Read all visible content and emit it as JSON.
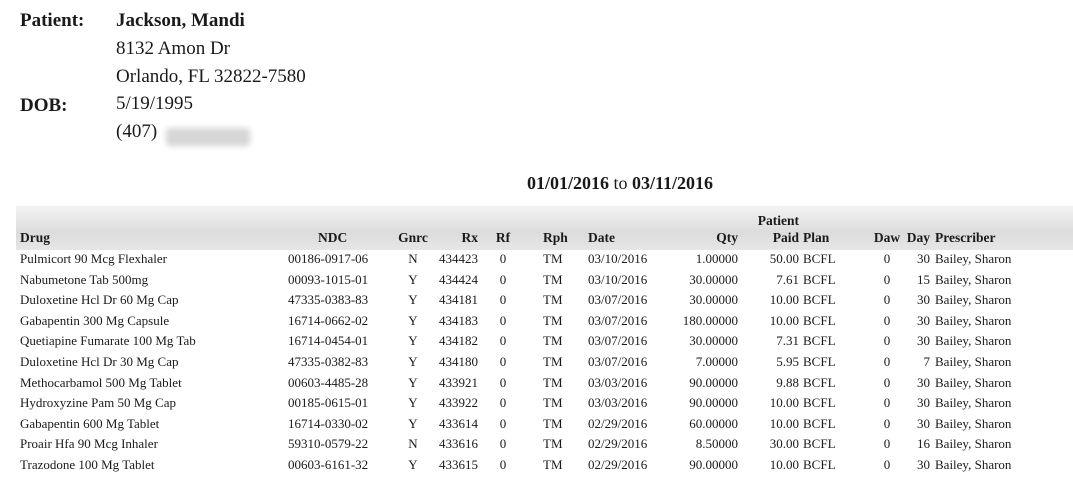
{
  "patient": {
    "label": "Patient:",
    "name": "Jackson, Mandi",
    "address1": "8132 Amon Dr",
    "address2": "Orlando, FL 32822-7580",
    "dob_label": "DOB:",
    "dob": "5/19/1995",
    "phone_prefix": "(407)"
  },
  "date_range": {
    "from": "01/01/2016",
    "sep": "to",
    "to": "03/11/2016"
  },
  "table": {
    "headers": {
      "drug": "Drug",
      "ndc": "NDC",
      "gnrc": "Gnrc",
      "rx": "Rx",
      "rf": "Rf",
      "rph": "Rph",
      "date": "Date",
      "qty": "Qty",
      "paid_top": "Patient",
      "paid": "Paid",
      "plan": "Plan",
      "daw": "Daw",
      "day": "Day",
      "prescriber": "Prescriber"
    },
    "rows": [
      {
        "drug": "Pulmicort 90 Mcg Flexhaler",
        "ndc": "00186-0917-06",
        "gnrc": "N",
        "rx": "434423",
        "rf": "0",
        "rph": "TM",
        "date": "03/10/2016",
        "qty": "1.00000",
        "paid": "50.00",
        "plan": "BCFL",
        "daw": "0",
        "day": "30",
        "prescriber": "Bailey, Sharon"
      },
      {
        "drug": "Nabumetone Tab 500mg",
        "ndc": "00093-1015-01",
        "gnrc": "Y",
        "rx": "434424",
        "rf": "0",
        "rph": "TM",
        "date": "03/10/2016",
        "qty": "30.00000",
        "paid": "7.61",
        "plan": "BCFL",
        "daw": "0",
        "day": "15",
        "prescriber": "Bailey, Sharon"
      },
      {
        "drug": "Duloxetine Hcl Dr 60 Mg Cap",
        "ndc": "47335-0383-83",
        "gnrc": "Y",
        "rx": "434181",
        "rf": "0",
        "rph": "TM",
        "date": "03/07/2016",
        "qty": "30.00000",
        "paid": "10.00",
        "plan": "BCFL",
        "daw": "0",
        "day": "30",
        "prescriber": "Bailey, Sharon"
      },
      {
        "drug": "Gabapentin 300 Mg Capsule",
        "ndc": "16714-0662-02",
        "gnrc": "Y",
        "rx": "434183",
        "rf": "0",
        "rph": "TM",
        "date": "03/07/2016",
        "qty": "180.00000",
        "paid": "10.00",
        "plan": "BCFL",
        "daw": "0",
        "day": "30",
        "prescriber": "Bailey, Sharon"
      },
      {
        "drug": "Quetiapine Fumarate 100 Mg Tab",
        "ndc": "16714-0454-01",
        "gnrc": "Y",
        "rx": "434182",
        "rf": "0",
        "rph": "TM",
        "date": "03/07/2016",
        "qty": "30.00000",
        "paid": "7.31",
        "plan": "BCFL",
        "daw": "0",
        "day": "30",
        "prescriber": "Bailey, Sharon"
      },
      {
        "drug": "Duloxetine Hcl Dr 30 Mg Cap",
        "ndc": "47335-0382-83",
        "gnrc": "Y",
        "rx": "434180",
        "rf": "0",
        "rph": "TM",
        "date": "03/07/2016",
        "qty": "7.00000",
        "paid": "5.95",
        "plan": "BCFL",
        "daw": "0",
        "day": "7",
        "prescriber": "Bailey, Sharon"
      },
      {
        "drug": "Methocarbamol 500 Mg Tablet",
        "ndc": "00603-4485-28",
        "gnrc": "Y",
        "rx": "433921",
        "rf": "0",
        "rph": "TM",
        "date": "03/03/2016",
        "qty": "90.00000",
        "paid": "9.88",
        "plan": "BCFL",
        "daw": "0",
        "day": "30",
        "prescriber": "Bailey, Sharon"
      },
      {
        "drug": "Hydroxyzine Pam 50 Mg Cap",
        "ndc": "00185-0615-01",
        "gnrc": "Y",
        "rx": "433922",
        "rf": "0",
        "rph": "TM",
        "date": "03/03/2016",
        "qty": "90.00000",
        "paid": "10.00",
        "plan": "BCFL",
        "daw": "0",
        "day": "30",
        "prescriber": "Bailey, Sharon"
      },
      {
        "drug": "Gabapentin 600 Mg Tablet",
        "ndc": "16714-0330-02",
        "gnrc": "Y",
        "rx": "433614",
        "rf": "0",
        "rph": "TM",
        "date": "02/29/2016",
        "qty": "60.00000",
        "paid": "10.00",
        "plan": "BCFL",
        "daw": "0",
        "day": "30",
        "prescriber": "Bailey, Sharon"
      },
      {
        "drug": "Proair Hfa 90 Mcg Inhaler",
        "ndc": "59310-0579-22",
        "gnrc": "N",
        "rx": "433616",
        "rf": "0",
        "rph": "TM",
        "date": "02/29/2016",
        "qty": "8.50000",
        "paid": "30.00",
        "plan": "BCFL",
        "daw": "0",
        "day": "16",
        "prescriber": "Bailey, Sharon"
      },
      {
        "drug": "Trazodone 100 Mg Tablet",
        "ndc": "00603-6161-32",
        "gnrc": "Y",
        "rx": "433615",
        "rf": "0",
        "rph": "TM",
        "date": "02/29/2016",
        "qty": "90.00000",
        "paid": "10.00",
        "plan": "BCFL",
        "daw": "0",
        "day": "30",
        "prescriber": "Bailey, Sharon"
      }
    ]
  }
}
